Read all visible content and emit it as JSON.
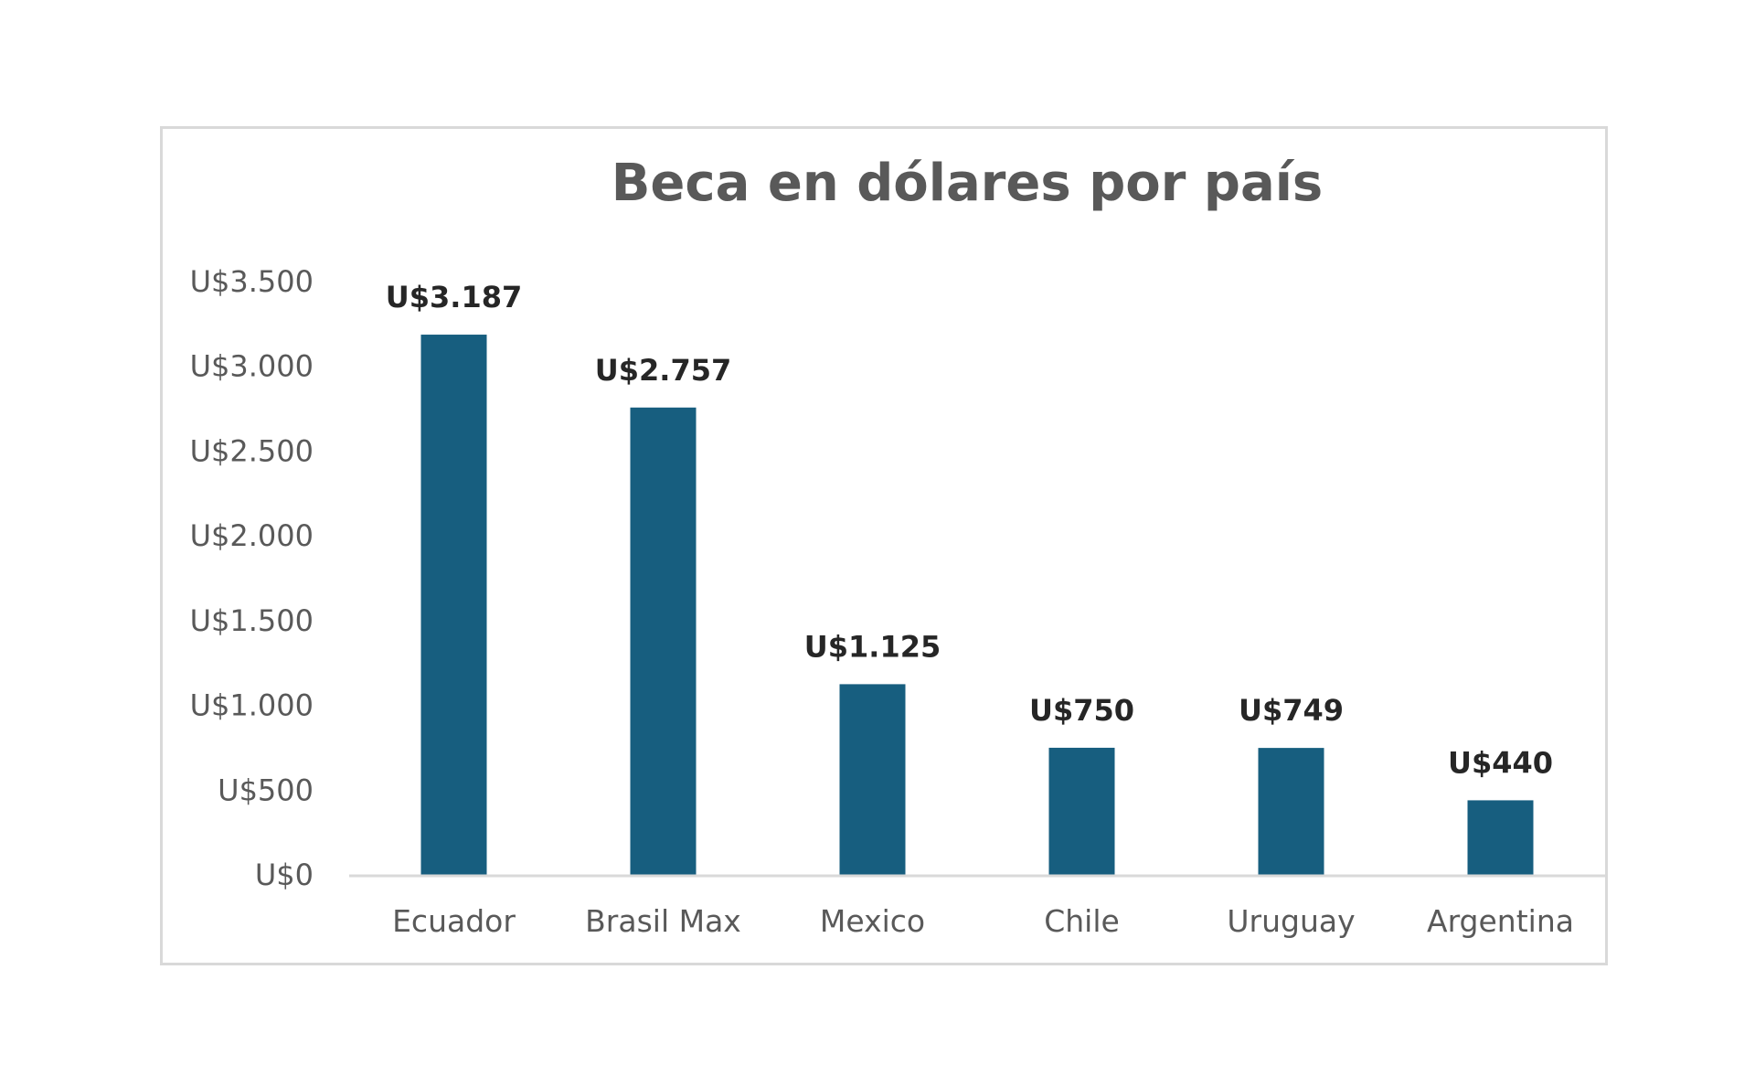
{
  "chart_data": {
    "type": "bar",
    "title": "Beca en dólares por país",
    "xlabel": "",
    "ylabel": "",
    "categories": [
      "Ecuador",
      "Brasil Max",
      "Mexico",
      "Chile",
      "Uruguay",
      "Argentina"
    ],
    "values": [
      3187,
      2757,
      1125,
      750,
      749,
      440
    ],
    "data_labels": [
      "U$3.187",
      "U$2.757",
      "U$1.125",
      "U$750",
      "U$749",
      "U$440"
    ],
    "ylim": [
      0,
      3500
    ],
    "y_ticks": [
      0,
      500,
      1000,
      1500,
      2000,
      2500,
      3000,
      3500
    ],
    "y_tick_labels": [
      "U$0",
      "U$500",
      "U$1.000",
      "U$1.500",
      "U$2.000",
      "U$2.500",
      "U$3.000",
      "U$3.500"
    ],
    "grid": false,
    "legend": "none",
    "bar_color": "#175e7f",
    "axis_color": "#d9d9d9"
  }
}
